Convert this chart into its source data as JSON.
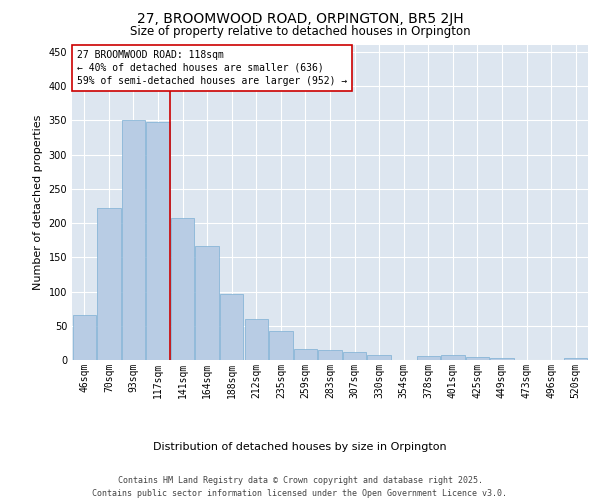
{
  "title": "27, BROOMWOOD ROAD, ORPINGTON, BR5 2JH",
  "subtitle": "Size of property relative to detached houses in Orpington",
  "xlabel": "Distribution of detached houses by size in Orpington",
  "ylabel": "Number of detached properties",
  "categories": [
    "46sqm",
    "70sqm",
    "93sqm",
    "117sqm",
    "141sqm",
    "164sqm",
    "188sqm",
    "212sqm",
    "235sqm",
    "259sqm",
    "283sqm",
    "307sqm",
    "330sqm",
    "354sqm",
    "378sqm",
    "401sqm",
    "425sqm",
    "449sqm",
    "473sqm",
    "496sqm",
    "520sqm"
  ],
  "values": [
    65,
    222,
    350,
    348,
    208,
    167,
    97,
    60,
    43,
    16,
    14,
    12,
    8,
    0,
    6,
    8,
    5,
    3,
    0,
    0,
    3
  ],
  "bar_color": "#b8cce4",
  "bar_edge_color": "#7bafd4",
  "background_color": "#dde6f0",
  "grid_color": "#ffffff",
  "annotation_box_color": "#cc0000",
  "vline_color": "#cc0000",
  "vline_x_index": 3,
  "annotation_text": "27 BROOMWOOD ROAD: 118sqm\n← 40% of detached houses are smaller (636)\n59% of semi-detached houses are larger (952) →",
  "ylim": [
    0,
    460
  ],
  "yticks": [
    0,
    50,
    100,
    150,
    200,
    250,
    300,
    350,
    400,
    450
  ],
  "footer_line1": "Contains HM Land Registry data © Crown copyright and database right 2025.",
  "footer_line2": "Contains public sector information licensed under the Open Government Licence v3.0.",
  "title_fontsize": 10,
  "subtitle_fontsize": 8.5,
  "axis_label_fontsize": 8,
  "tick_fontsize": 7,
  "annotation_fontsize": 7,
  "footer_fontsize": 6
}
